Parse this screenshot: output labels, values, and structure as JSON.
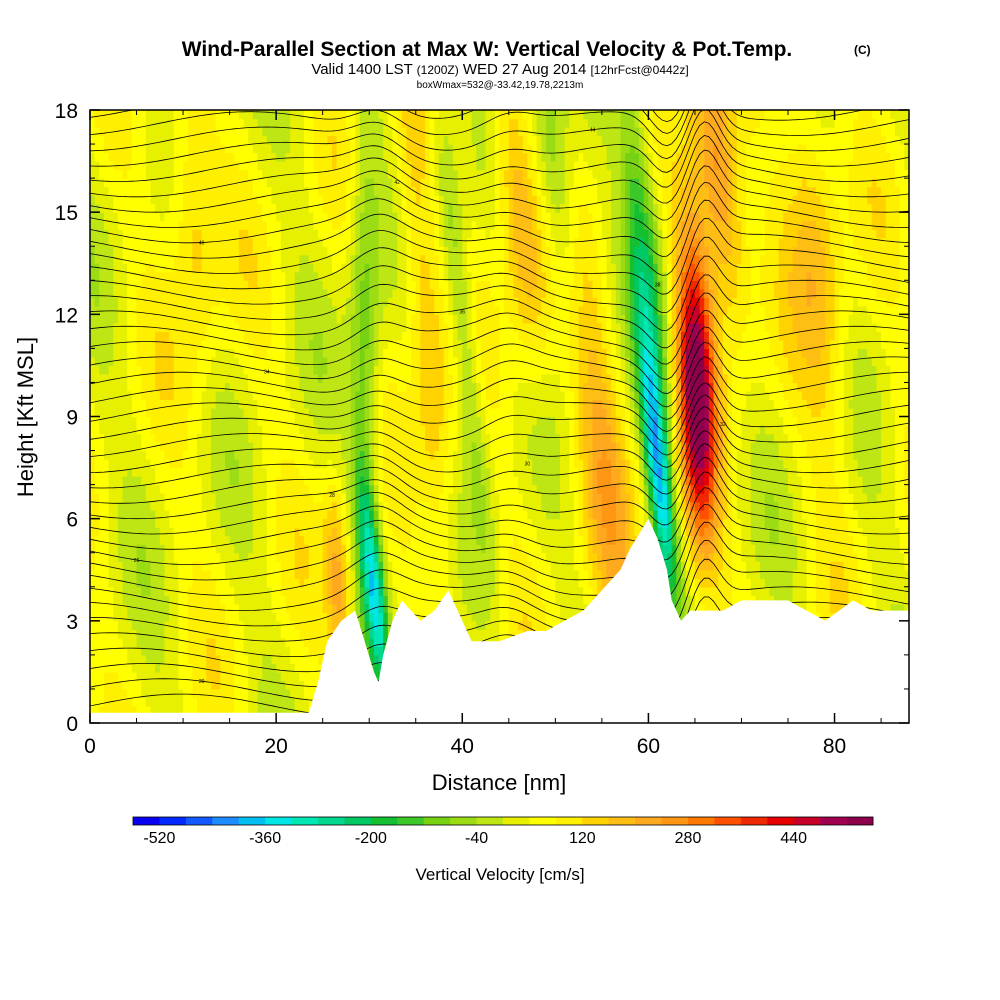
{
  "chart_data": {
    "type": "heatmap",
    "title": "Wind-Parallel Section at Max W: Vertical Velocity & Pot.Temp.",
    "title_mark": "(C)",
    "subtitle_parts": [
      "Valid 1400 LST ",
      "(1200Z)",
      " WED 27 Aug 2014 ",
      "[12hrFcst@0442z]"
    ],
    "subtitle2": "boxWmax=532@-33.42,19.78,2213m",
    "xlabel": "Distance [nm]",
    "ylabel": "Height [Kft MSL]",
    "xlim": [
      0,
      88
    ],
    "ylim": [
      0,
      18
    ],
    "x_ticks": [
      0,
      20,
      40,
      60,
      80
    ],
    "x_tick_labels": [
      "0",
      "20",
      "40",
      "60",
      "80"
    ],
    "y_ticks": [
      0,
      3,
      6,
      9,
      12,
      15,
      18
    ],
    "y_tick_labels": [
      "0",
      "3",
      "6",
      "9",
      "12",
      "15",
      "18"
    ],
    "colorbar": {
      "title": "Vertical Velocity [cm/s]",
      "min": -560,
      "max": 560,
      "step": 40,
      "tick_values": [
        -520,
        -360,
        -200,
        -40,
        120,
        280,
        440
      ],
      "tick_labels": [
        "-520",
        "-360",
        "-200",
        "-40",
        "120",
        "280",
        "440"
      ],
      "colors": [
        "#0a00f0",
        "#0028ff",
        "#1458ff",
        "#1e8cff",
        "#00bef0",
        "#00e6e6",
        "#00e6b4",
        "#00d890",
        "#00c864",
        "#14c032",
        "#3cc828",
        "#78d214",
        "#9bdc14",
        "#bee614",
        "#e6f000",
        "#ffff00",
        "#fff000",
        "#ffd200",
        "#ffbe14",
        "#ffaa1e",
        "#ff9614",
        "#ff7800",
        "#ff5000",
        "#f02800",
        "#e60000",
        "#c80028",
        "#a00050",
        "#8c004c"
      ]
    },
    "terrain_profile": {
      "x_nm": [
        0,
        23.5,
        24.5,
        25.5,
        27,
        28.5,
        29.5,
        30.5,
        31,
        31.5,
        32.5,
        33.5,
        35.5,
        37,
        38.5,
        40,
        41,
        44,
        47,
        49,
        51,
        53,
        55,
        57,
        58,
        60,
        61,
        62,
        62.5,
        63.5,
        64.5,
        66,
        68,
        70,
        72,
        75,
        79,
        82,
        84,
        88
      ],
      "height_kft": [
        0.3,
        0.3,
        1.2,
        2.4,
        3.0,
        3.3,
        2.4,
        1.5,
        1.2,
        2.0,
        3.0,
        3.6,
        3.0,
        3.3,
        3.9,
        3.0,
        2.4,
        2.4,
        2.7,
        2.7,
        3.0,
        3.3,
        3.9,
        4.5,
        5.1,
        6.0,
        5.4,
        4.5,
        3.6,
        3.0,
        3.3,
        3.3,
        3.3,
        3.6,
        3.6,
        3.6,
        3.0,
        3.6,
        3.3,
        3.3
      ]
    },
    "w_features": [
      {
        "kind": "updraft",
        "x_nm": 65.0,
        "z_kft": 9.5,
        "w_cms": 532
      },
      {
        "kind": "downdraft",
        "x_nm": 61.0,
        "z_kft": 7.5,
        "w_cms": -340
      },
      {
        "kind": "downdraft",
        "x_nm": 30.5,
        "z_kft": 4.0,
        "w_cms": -300
      },
      {
        "kind": "updraft",
        "x_nm": 27.0,
        "z_kft": 3.5,
        "w_cms": 200
      },
      {
        "kind": "updraft",
        "x_nm": 45.0,
        "z_kft": 15.0,
        "w_cms": 220
      },
      {
        "kind": "downdraft",
        "x_nm": 49.0,
        "z_kft": 16.0,
        "w_cms": -160
      }
    ],
    "theta_label_texts": [
      "20",
      "22",
      "24",
      "26",
      "28",
      "30",
      "32",
      "34",
      "36",
      "38",
      "40",
      "42",
      "44",
      "46",
      "48"
    ]
  }
}
